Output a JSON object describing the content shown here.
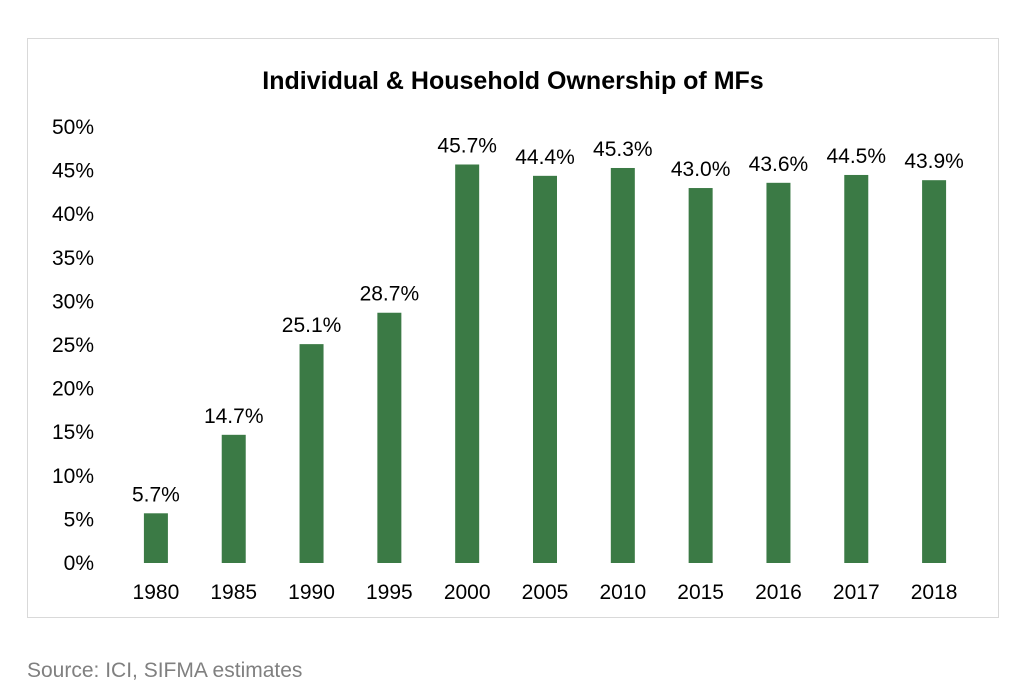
{
  "chart_data": {
    "type": "bar",
    "title": "Individual & Household Ownership of MFs",
    "categories": [
      "1980",
      "1985",
      "1990",
      "1995",
      "2000",
      "2005",
      "2010",
      "2015",
      "2016",
      "2017",
      "2018"
    ],
    "values": [
      5.7,
      14.7,
      25.1,
      28.7,
      45.7,
      44.4,
      45.3,
      43.0,
      43.6,
      44.5,
      43.9
    ],
    "data_labels": [
      "5.7%",
      "14.7%",
      "25.1%",
      "28.7%",
      "45.7%",
      "44.4%",
      "45.3%",
      "43.0%",
      "43.6%",
      "44.5%",
      "43.9%"
    ],
    "yticks": [
      "0%",
      "5%",
      "10%",
      "15%",
      "20%",
      "25%",
      "30%",
      "35%",
      "40%",
      "45%",
      "50%"
    ],
    "ylim": [
      0,
      50
    ],
    "xlabel": "",
    "ylabel": "",
    "grid": false,
    "bar_color": "#3b7a45"
  },
  "source": "Source: ICI, SIFMA estimates"
}
